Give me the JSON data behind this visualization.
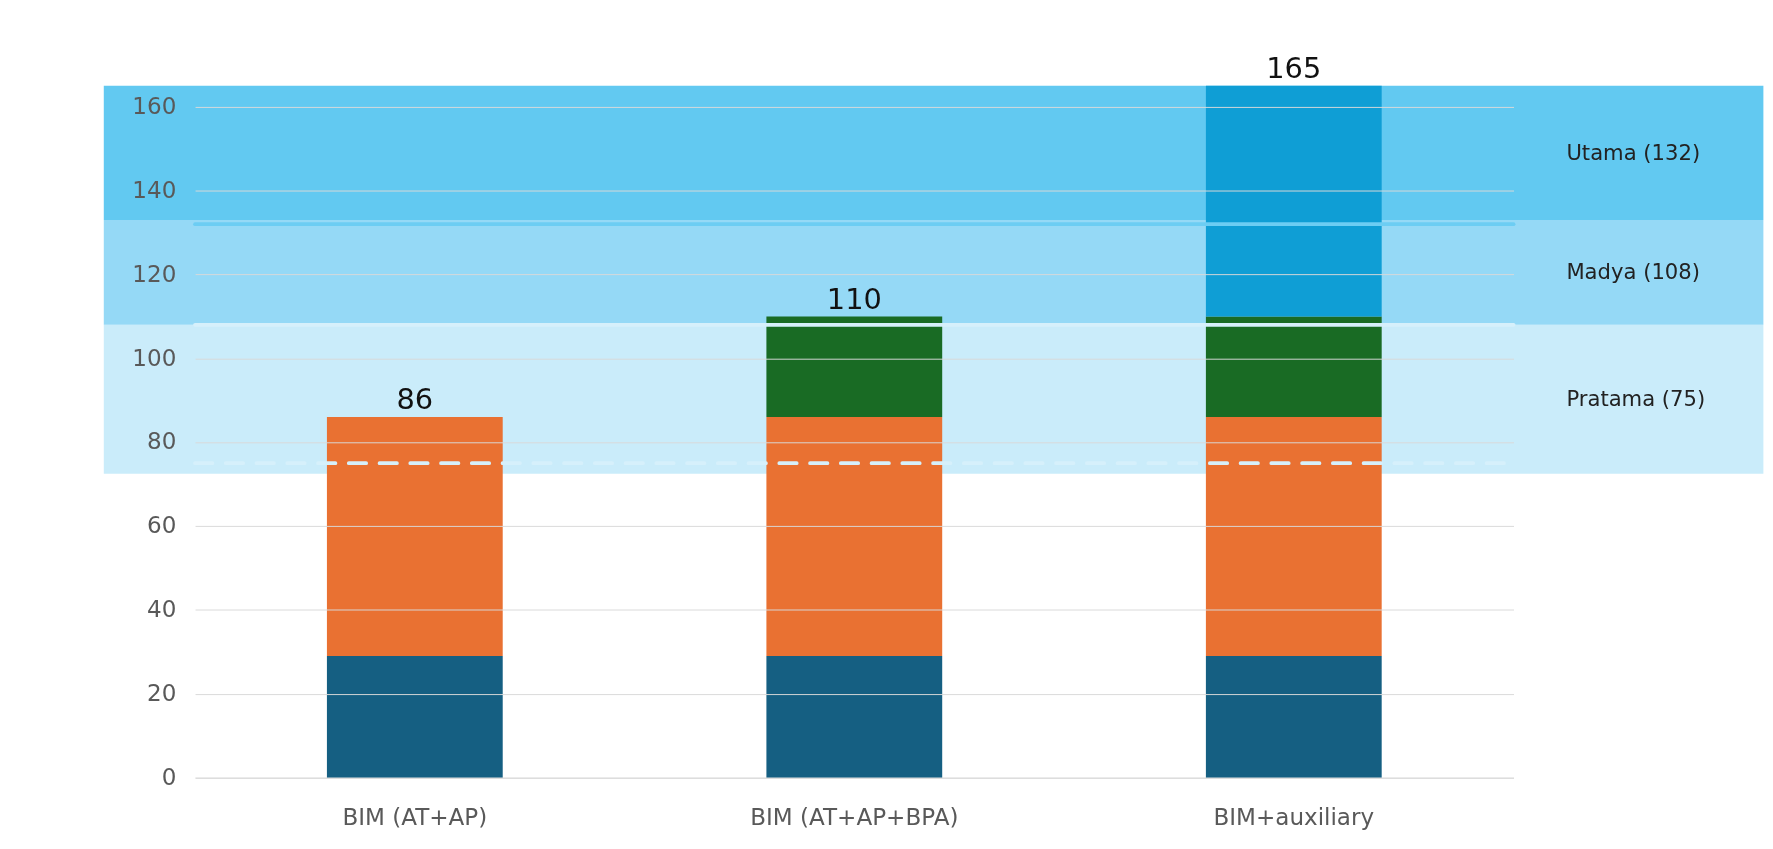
{
  "chart_data": {
    "type": "bar",
    "stacked": true,
    "categories": [
      "BIM (AT+AP)",
      "BIM (AT+AP+BPA)",
      "BIM+auxiliary"
    ],
    "series": [
      {
        "color": "#155f82",
        "values": [
          29,
          29,
          29
        ]
      },
      {
        "color": "#e97132",
        "values": [
          57,
          57,
          57
        ]
      },
      {
        "color": "#196b24",
        "values": [
          null,
          24,
          24
        ]
      },
      {
        "color": "#0f9ed5",
        "values": [
          null,
          null,
          55
        ]
      }
    ],
    "totals": [
      "86",
      "110",
      "165"
    ],
    "ylim": [
      0,
      165
    ],
    "yticks": [
      0,
      20,
      40,
      60,
      80,
      100,
      120,
      140,
      160
    ],
    "grid": "y",
    "bands": [
      {
        "axis": "y",
        "from": 72.5,
        "to": 108,
        "label": "Pratama (75)",
        "color": "#caecfa"
      },
      {
        "axis": "y",
        "from": 108,
        "to": 133,
        "label": "Madya (108)",
        "color": "#95d9f6"
      },
      {
        "axis": "y",
        "from": 133,
        "to": 165,
        "label": "Utama (132)",
        "color": "#62c9f1"
      }
    ],
    "ref_lines": [
      {
        "axis": "y",
        "value": 75,
        "color": "#d6f0fb",
        "line_style": "dashed"
      },
      {
        "axis": "y",
        "value": 108,
        "color": "#d6f0fb",
        "line_style": "solid"
      },
      {
        "axis": "y",
        "value": 132,
        "color": "#6ccdf3",
        "line_style": "solid"
      }
    ]
  }
}
